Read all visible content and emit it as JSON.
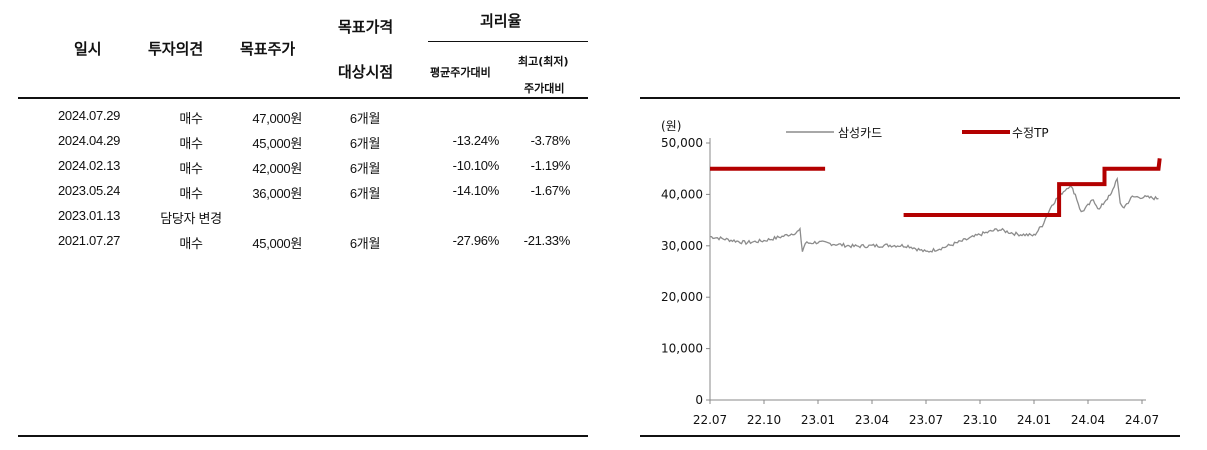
{
  "table": {
    "headers": {
      "date": "일시",
      "opinion": "투자의견",
      "target_price": "목표주가",
      "target_period_line1": "목표가격",
      "target_period_line2": "대상시점",
      "divergence": "괴리율",
      "avg_vs": "평균주가대비",
      "max_vs_line1": "최고(최저)",
      "max_vs_line2": "주가대비"
    },
    "rows": [
      {
        "date": "2024.07.29",
        "opinion": "매수",
        "target_price": "47,000원",
        "period": "6개월",
        "avg": "",
        "max": ""
      },
      {
        "date": "2024.04.29",
        "opinion": "매수",
        "target_price": "45,000원",
        "period": "6개월",
        "avg": "-13.24%",
        "max": "-3.78%"
      },
      {
        "date": "2024.02.13",
        "opinion": "매수",
        "target_price": "42,000원",
        "period": "6개월",
        "avg": "-10.10%",
        "max": "-1.19%"
      },
      {
        "date": "2023.05.24",
        "opinion": "매수",
        "target_price": "36,000원",
        "period": "6개월",
        "avg": "-14.10%",
        "max": "-1.67%"
      },
      {
        "date": "2023.01.13",
        "opinion": "담당자 변경",
        "target_price": "",
        "period": "",
        "avg": "",
        "max": ""
      },
      {
        "date": "2021.07.27",
        "opinion": "매수",
        "target_price": "45,000원",
        "period": "6개월",
        "avg": "-27.96%",
        "max": "-21.33%"
      }
    ]
  },
  "chart_data": {
    "type": "line",
    "ylabel": "(원)",
    "ylim": [
      0,
      50000
    ],
    "yticks": [
      0,
      10000,
      20000,
      30000,
      40000,
      50000
    ],
    "ytick_labels": [
      "0",
      "10,000",
      "20,000",
      "30,000",
      "40,000",
      "50,000"
    ],
    "xlim": [
      "2022.07",
      "2024.07"
    ],
    "xtick_labels": [
      "22.07",
      "22.10",
      "23.01",
      "23.04",
      "23.07",
      "23.10",
      "24.01",
      "24.04",
      "24.07"
    ],
    "legend_position": "top",
    "series": [
      {
        "name": "삼성카드",
        "color": "#8c8c8c",
        "points": [
          [
            "2022.07",
            31800
          ],
          [
            "2022.08",
            31200
          ],
          [
            "2022.09",
            30600
          ],
          [
            "2022.10",
            31000
          ],
          [
            "2022.11",
            31800
          ],
          [
            "2022.11.25",
            32600
          ],
          [
            "2022.12",
            33000
          ],
          [
            "2022.12.05",
            28900
          ],
          [
            "2022.12.10",
            30500
          ],
          [
            "2023.01",
            30700
          ],
          [
            "2023.02",
            30300
          ],
          [
            "2023.03",
            29900
          ],
          [
            "2023.04",
            30000
          ],
          [
            "2023.05",
            30100
          ],
          [
            "2023.06",
            30000
          ],
          [
            "2023.07",
            28800
          ],
          [
            "2023.08",
            29700
          ],
          [
            "2023.09",
            30900
          ],
          [
            "2023.10",
            32200
          ],
          [
            "2023.11",
            33200
          ],
          [
            "2023.12",
            32300
          ],
          [
            "2024.01",
            32000
          ],
          [
            "2024.01.15",
            34000
          ],
          [
            "2024.02",
            38000
          ],
          [
            "2024.02.15",
            40000
          ],
          [
            "2024.03",
            41800
          ],
          [
            "2024.03.10",
            40000
          ],
          [
            "2024.03.20",
            36500
          ],
          [
            "2024.04",
            37800
          ],
          [
            "2024.04.10",
            39000
          ],
          [
            "2024.04.20",
            37000
          ],
          [
            "2024.05",
            39000
          ],
          [
            "2024.05.10",
            40000
          ],
          [
            "2024.05.20",
            43300
          ],
          [
            "2024.05.25",
            38000
          ],
          [
            "2024.06",
            37500
          ],
          [
            "2024.06.15",
            39500
          ],
          [
            "2024.07",
            39500
          ],
          [
            "2024.07.29",
            39200
          ]
        ]
      },
      {
        "name": "수정TP",
        "color": "#b30000",
        "segments": [
          [
            [
              "2022.07",
              45000
            ],
            [
              "2023.01.13",
              45000
            ]
          ],
          [
            [
              "2023.05.24",
              36000
            ],
            [
              "2024.02.13",
              36000
            ],
            [
              "2024.02.13",
              42000
            ],
            [
              "2024.04.29",
              42000
            ],
            [
              "2024.04.29",
              45000
            ],
            [
              "2024.07.29",
              45000
            ],
            [
              "2024.07.31",
              47000
            ]
          ]
        ]
      }
    ]
  }
}
